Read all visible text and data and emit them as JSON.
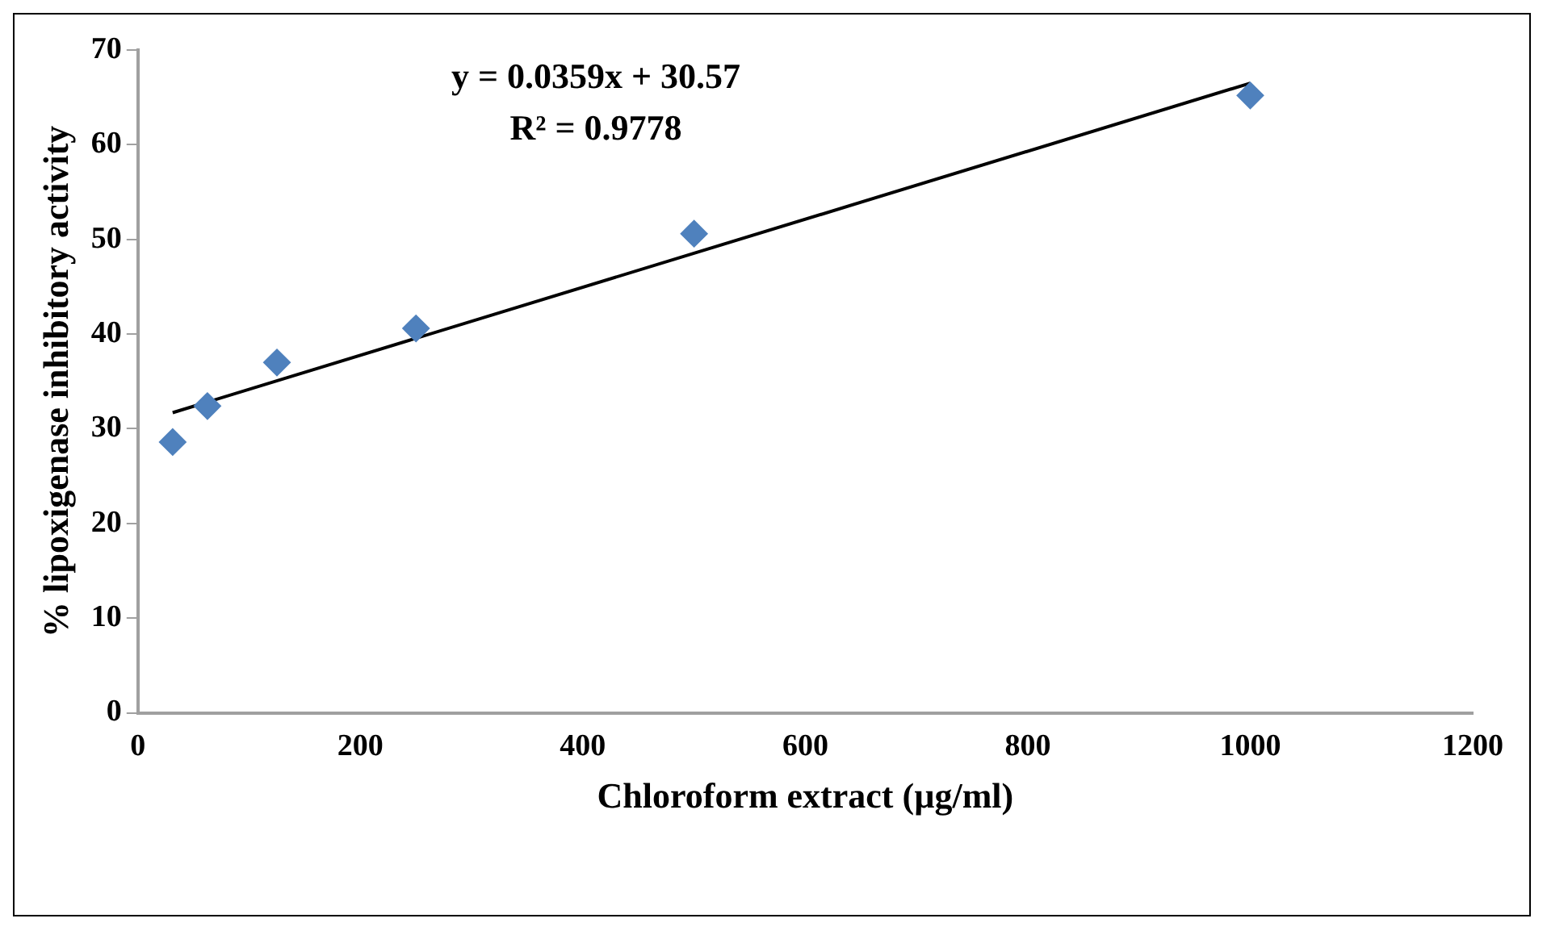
{
  "chart_data": {
    "type": "scatter",
    "xlabel": "Chloroform extract (µg/ml)",
    "ylabel": "% lipoxigenase inhibitory activity",
    "annotations": [
      "y = 0.0359x + 30.57",
      "R² = 0.9778"
    ],
    "x": [
      31.25,
      62.5,
      125,
      250,
      500,
      1000
    ],
    "series": [
      {
        "type": "scatter",
        "color": "#4f81bd",
        "marker": "diamond",
        "values": [
          28.6,
          32.4,
          37.0,
          40.6,
          50.6,
          65.2
        ]
      },
      {
        "type": "line",
        "color": "#000000",
        "marker": "none",
        "x": [
          31.25,
          1000
        ],
        "values": [
          31.7,
          66.5
        ]
      }
    ],
    "xlim": [
      0,
      1200
    ],
    "xticks": [
      0,
      200,
      400,
      600,
      800,
      1000,
      1200
    ],
    "ylim": [
      0,
      70
    ],
    "yticks": [
      0,
      10,
      20,
      30,
      40,
      50,
      60,
      70
    ],
    "grid": false,
    "legend": false
  }
}
